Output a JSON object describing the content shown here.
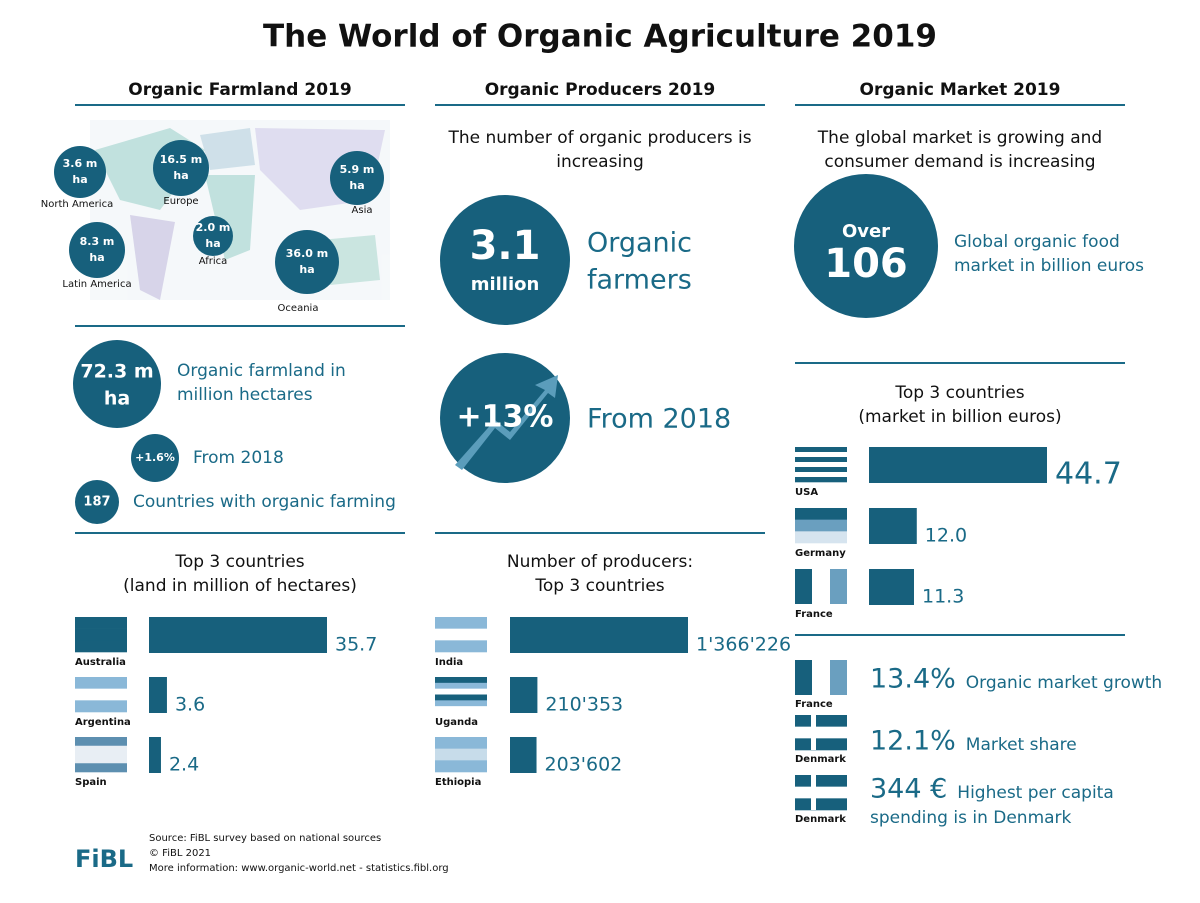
{
  "title": "The World of Organic Agriculture 2019",
  "farmland": {
    "heading": "Organic Farmland 2019",
    "regions": [
      {
        "value": "3.6 m",
        "unit": "ha",
        "name": "North America"
      },
      {
        "value": "16.5 m",
        "unit": "ha",
        "name": "Europe"
      },
      {
        "value": "5.9 m",
        "unit": "ha",
        "name": "Asia"
      },
      {
        "value": "8.3 m",
        "unit": "ha",
        "name": "Latin America"
      },
      {
        "value": "2.0 m",
        "unit": "ha",
        "name": "Africa"
      },
      {
        "value": "36.0 m",
        "unit": "ha",
        "name": "Oceania"
      }
    ],
    "total": {
      "value": "72.3 m",
      "unit": "ha",
      "label_lines": [
        "Organic farmland in",
        "million hectares"
      ]
    },
    "growth": {
      "value": "+1.6%",
      "label": "From 2018"
    },
    "countries": {
      "value": "187",
      "label": "Countries with organic farming"
    },
    "top3": {
      "title_lines": [
        "Top 3 countries",
        "(land in million of hectares)"
      ],
      "categories": [
        "Australia",
        "Argentina",
        "Spain"
      ],
      "values": [
        35.7,
        3.6,
        2.4
      ]
    }
  },
  "producers": {
    "heading": "Organic Producers 2019",
    "intro_lines": [
      "The number of organic producers is",
      "increasing"
    ],
    "total": {
      "value": "3.1",
      "unit": "million",
      "label_lines": [
        "Organic",
        "farmers"
      ]
    },
    "growth": {
      "value": "+13%",
      "label": "From 2018"
    },
    "top3": {
      "title_lines": [
        "Number of producers:",
        "Top 3 countries"
      ],
      "categories": [
        "India",
        "Uganda",
        "Ethiopia"
      ],
      "values": [
        1366226,
        210353,
        203602
      ],
      "value_labels": [
        "1'366'226",
        "210'353",
        "203'602"
      ]
    }
  },
  "market": {
    "heading": "Organic Market 2019",
    "intro_lines": [
      "The global market is growing and",
      "consumer demand is increasing"
    ],
    "total": {
      "prefix": "Over",
      "value": "106",
      "label_lines": [
        "Global organic food",
        "market in billion euros"
      ]
    },
    "top3": {
      "title_lines": [
        "Top 3 countries",
        "(market in billion euros)"
      ],
      "categories": [
        "USA",
        "Germany",
        "France"
      ],
      "values": [
        44.7,
        12.0,
        11.3
      ],
      "value_labels": [
        "44.7",
        "12.0",
        "11.3"
      ]
    },
    "stats": [
      {
        "country": "France",
        "value": "13.4%",
        "label_lines": [
          "Organic market growth"
        ]
      },
      {
        "country": "Denmark",
        "value": "12.1%",
        "label_lines": [
          "Market share"
        ]
      },
      {
        "country": "Denmark",
        "value": "344 €",
        "label_lines": [
          "Highest per capita",
          "spending is in Denmark"
        ]
      }
    ]
  },
  "footer": {
    "logo": "FiBL",
    "lines": [
      "Source: FiBL survey based on national sources",
      "© FiBL 2021",
      "More information: www.organic-world.net - statistics.fibl.org"
    ]
  }
}
